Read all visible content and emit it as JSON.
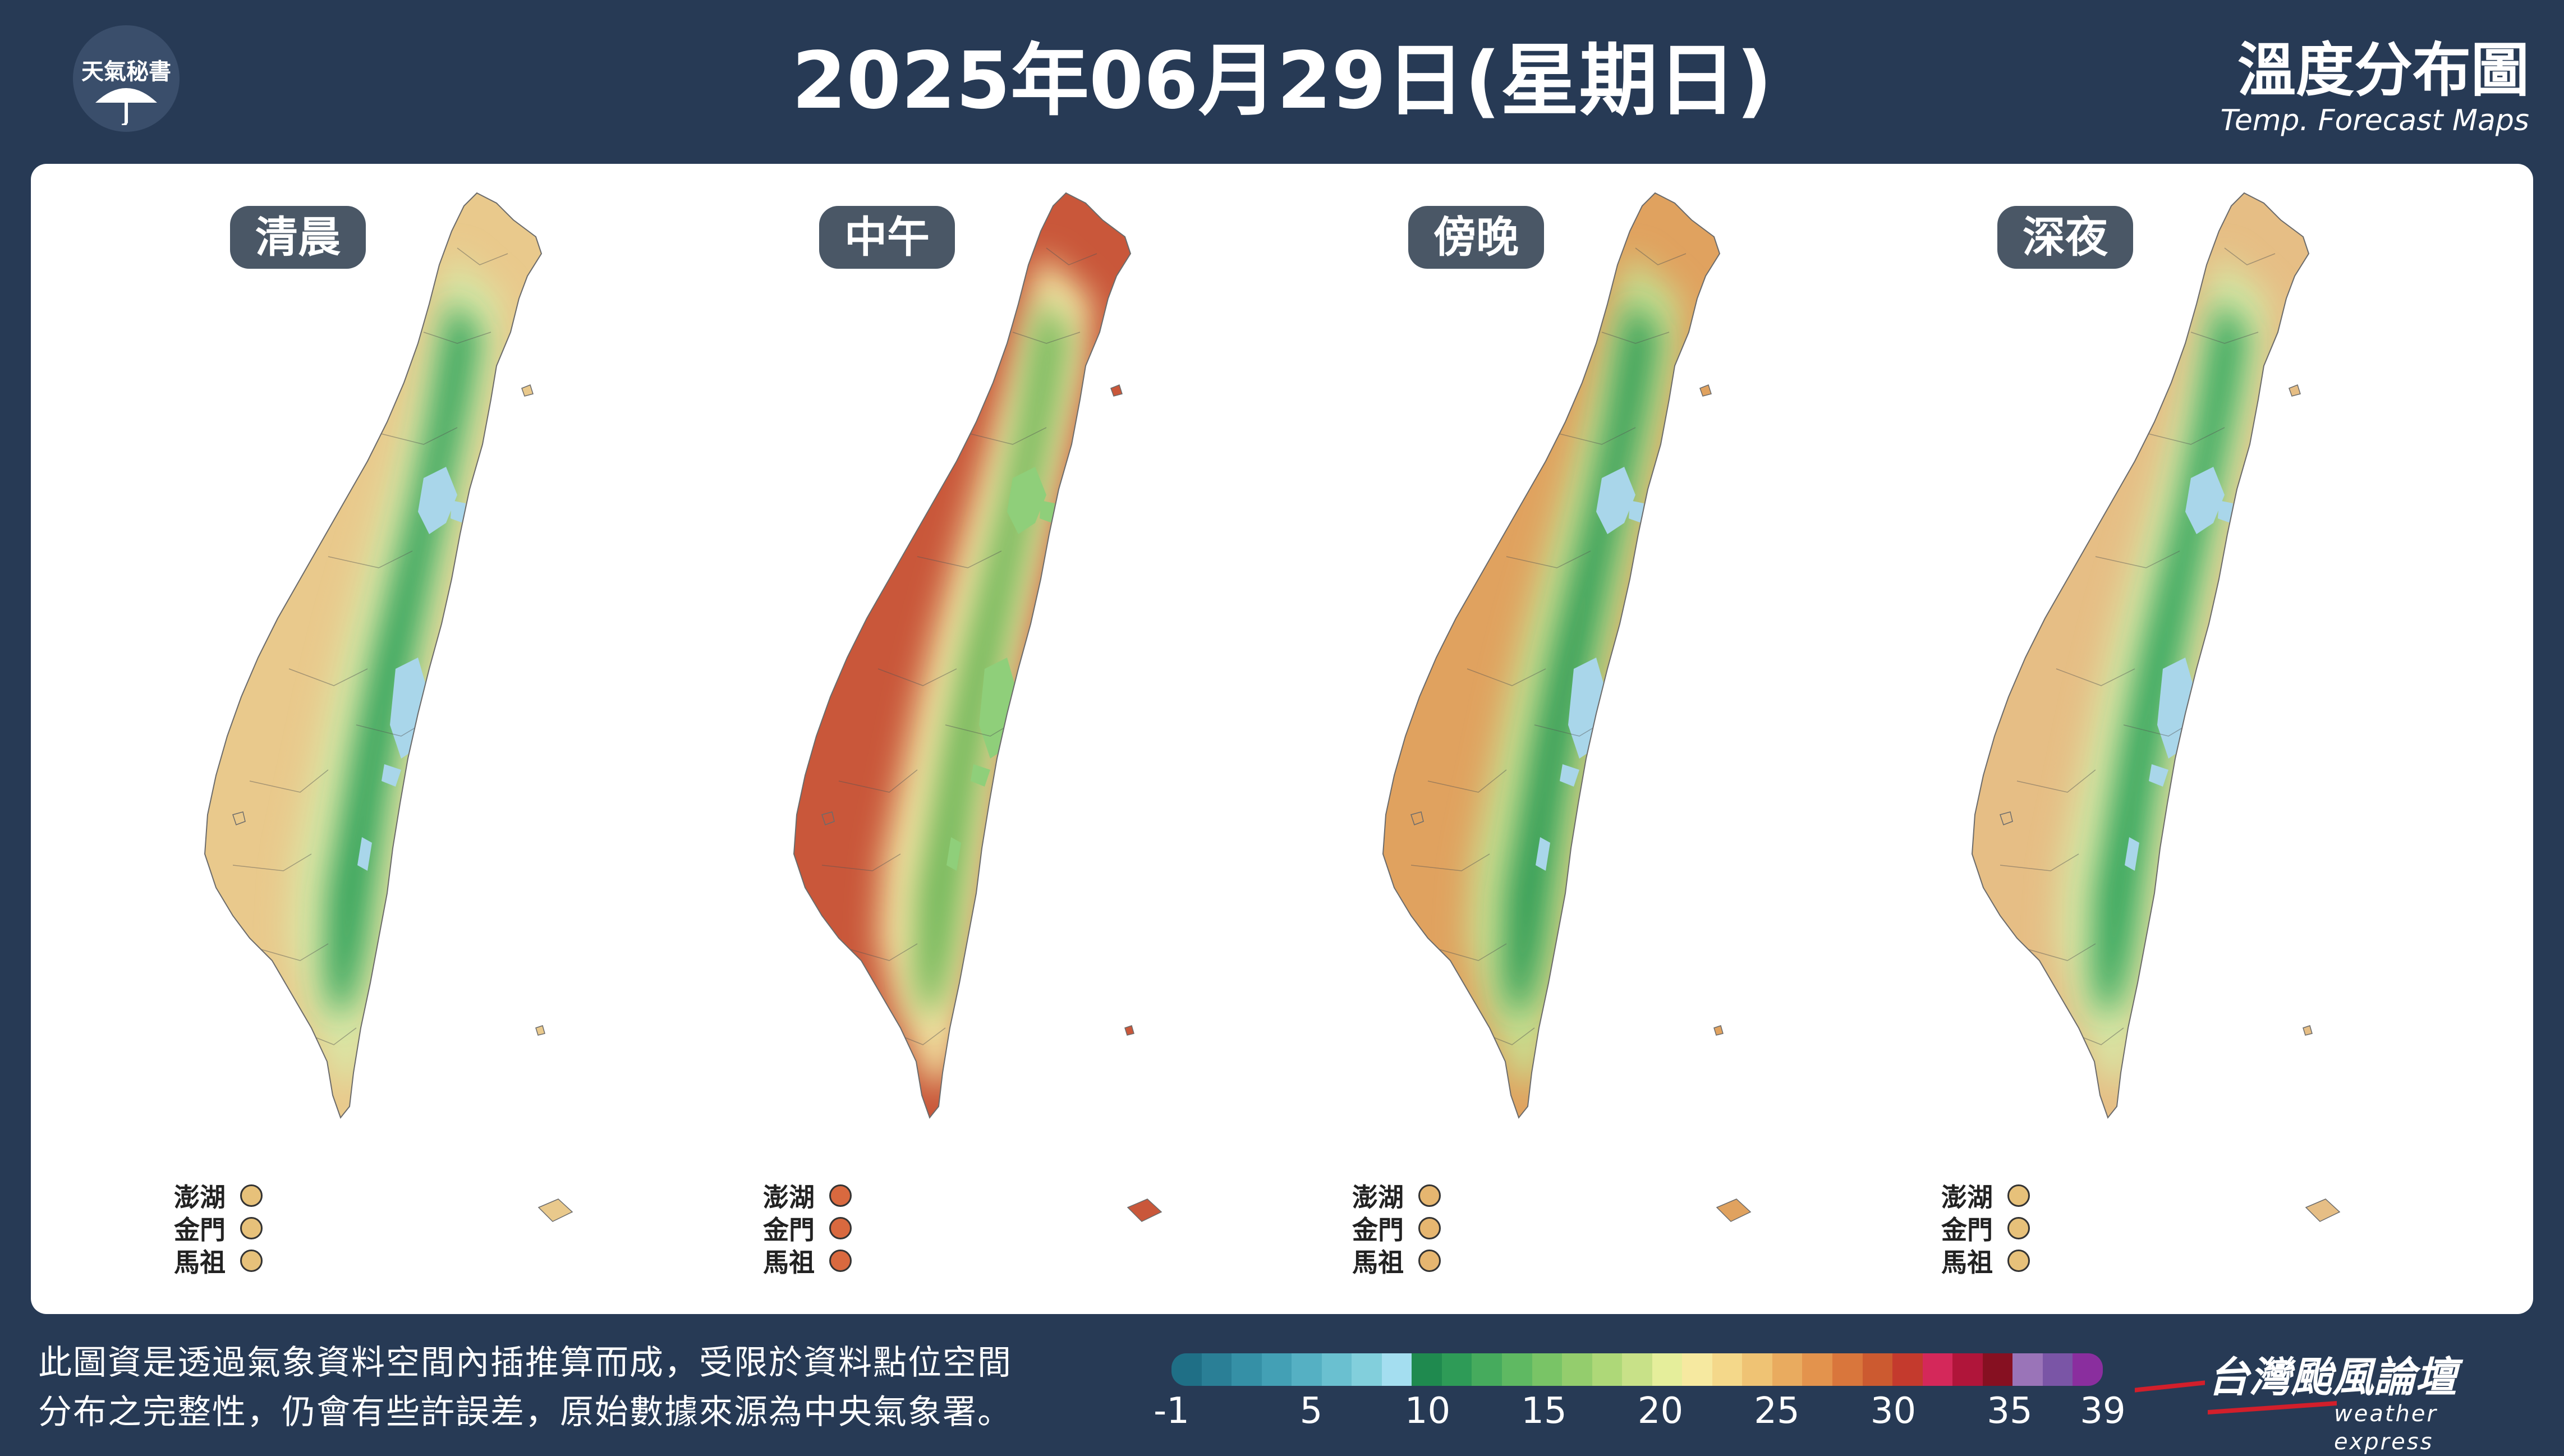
{
  "header": {
    "logo_text": "天氣秘書",
    "title": "2025年06月29日(星期日)",
    "map_title_zh": "溫度分布圖",
    "map_title_en": "Temp. Forecast Maps"
  },
  "panels": [
    {
      "label": "清晨",
      "colors": {
        "outer": "#e9c98c",
        "mid": "#d9e7a6",
        "core": "#31a35a",
        "peak": "#a9d6ea"
      },
      "island_dot_color": "#e7c17a"
    },
    {
      "label": "中午",
      "colors": {
        "outer": "#c9573a",
        "mid": "#f1e3a1",
        "core": "#6fb85a",
        "peak": "#8fcf7a"
      },
      "island_dot_color": "#d9693f"
    },
    {
      "label": "傍晚",
      "colors": {
        "outer": "#e0a25f",
        "mid": "#c8df90",
        "core": "#2e9c55",
        "peak": "#a9d6ea"
      },
      "island_dot_color": "#e6b670"
    },
    {
      "label": "深夜",
      "colors": {
        "outer": "#e6be85",
        "mid": "#d7e6a4",
        "core": "#33a55b",
        "peak": "#a9d6ea"
      },
      "island_dot_color": "#e7c17a"
    }
  ],
  "islands": [
    "澎湖",
    "金門",
    "馬祖"
  ],
  "footer": {
    "note_line1": "此圖資是透過氣象資料空間內插推算而成，受限於資料點位空間",
    "note_line2": "分布之完整性，仍會有些許誤差，原始數據來源為中央氣象署。"
  },
  "colorbar": {
    "min": -1,
    "max": 39,
    "colors": [
      "#1f6f86",
      "#2a7f96",
      "#3590a6",
      "#43a0b5",
      "#55b0c3",
      "#6ac0d0",
      "#82cfdc",
      "#a4def0",
      "#1f8a4f",
      "#2e9b57",
      "#46ab5d",
      "#5fb962",
      "#79c466",
      "#94cd6d",
      "#aed878",
      "#c8e188",
      "#e5ee9b",
      "#f6e9a0",
      "#f4d88a",
      "#efc374",
      "#e9ab5f",
      "#e3934d",
      "#d9763c",
      "#cc5a30",
      "#c43a2d",
      "#d4285a",
      "#b0153a",
      "#861021",
      "#9a74b8",
      "#7a55a6",
      "#8a2e9e"
    ],
    "ticks": [
      "-1",
      "5",
      "10",
      "15",
      "20",
      "25",
      "30",
      "35",
      "39"
    ]
  },
  "brand": {
    "name_zh": "台灣颱風論壇",
    "name_en": "weather express"
  }
}
